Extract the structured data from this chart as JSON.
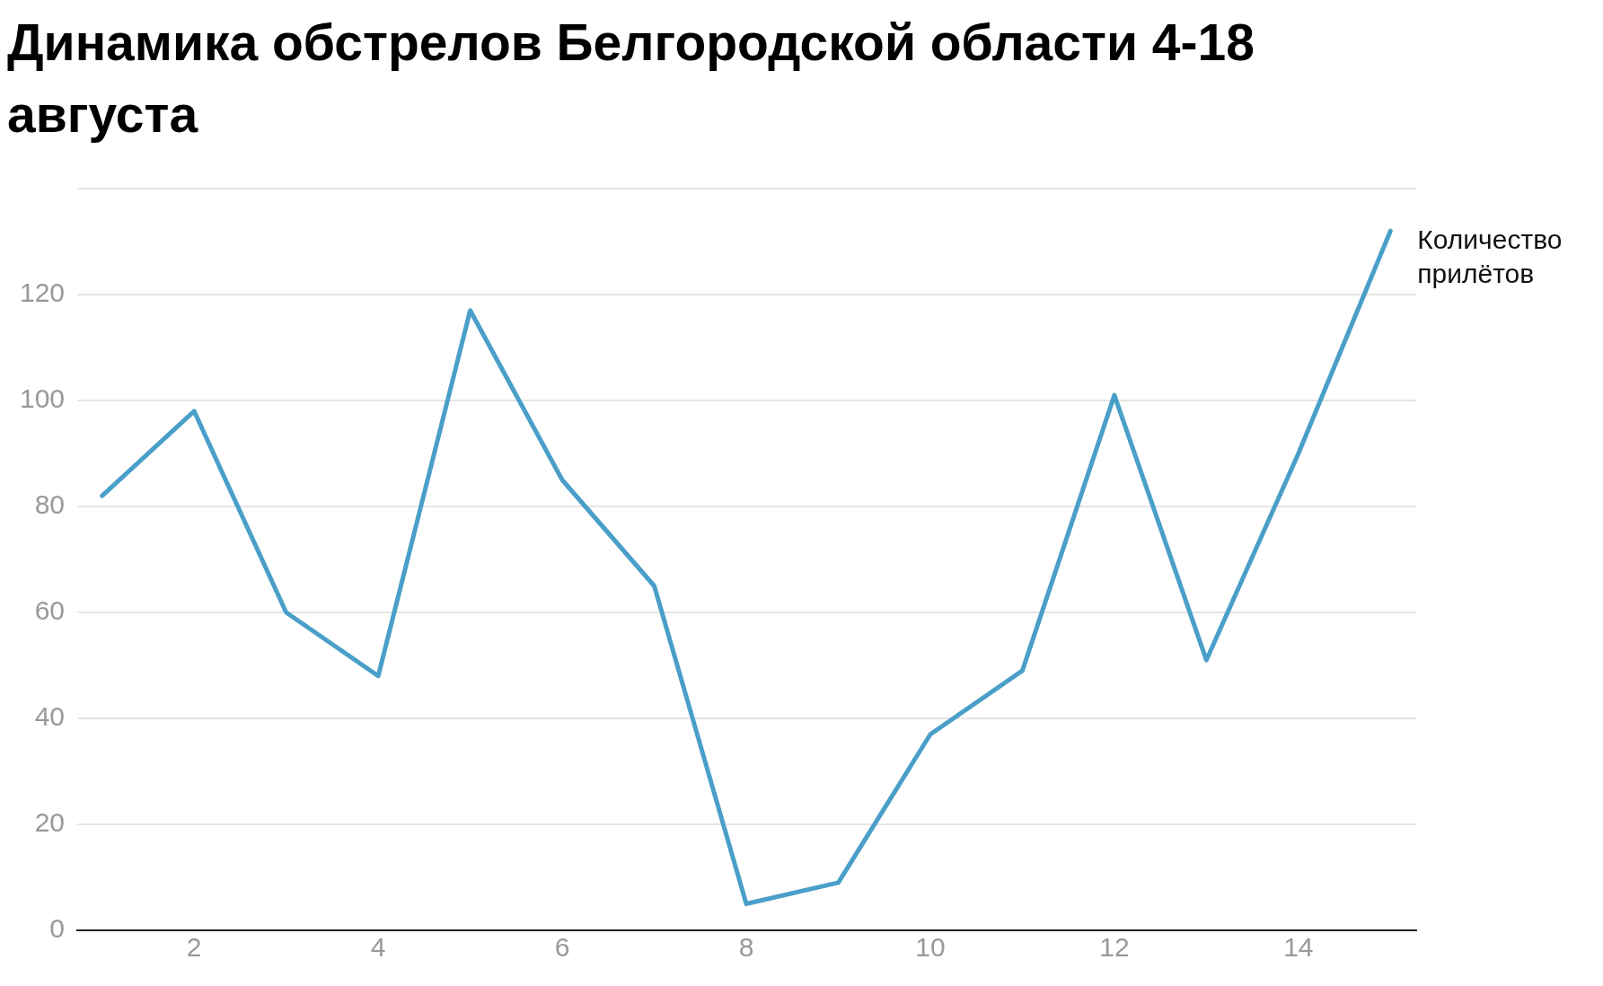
{
  "chart_data": {
    "type": "line",
    "title": "Динамика обстрелов Белгородской области 4-18 августа",
    "x": [
      1,
      2,
      3,
      4,
      5,
      6,
      7,
      8,
      9,
      10,
      11,
      12,
      13,
      14,
      15
    ],
    "series": [
      {
        "name": "Количество прилётов",
        "color": "#4a9fc9",
        "values": [
          82,
          98,
          60,
          48,
          117,
          85,
          65,
          5,
          9,
          37,
          49,
          101,
          51,
          90,
          132
        ]
      }
    ],
    "xlim": [
      0.73,
      15.28
    ],
    "xticks": [
      2,
      4,
      6,
      8,
      10,
      12,
      14
    ],
    "ylim": [
      0,
      140
    ],
    "yticks": [
      0,
      20,
      40,
      60,
      80,
      100,
      120,
      {
        "value": 140,
        "label": null
      }
    ],
    "grid": "y",
    "legend": false,
    "marker": "none",
    "line_style": "solid"
  }
}
